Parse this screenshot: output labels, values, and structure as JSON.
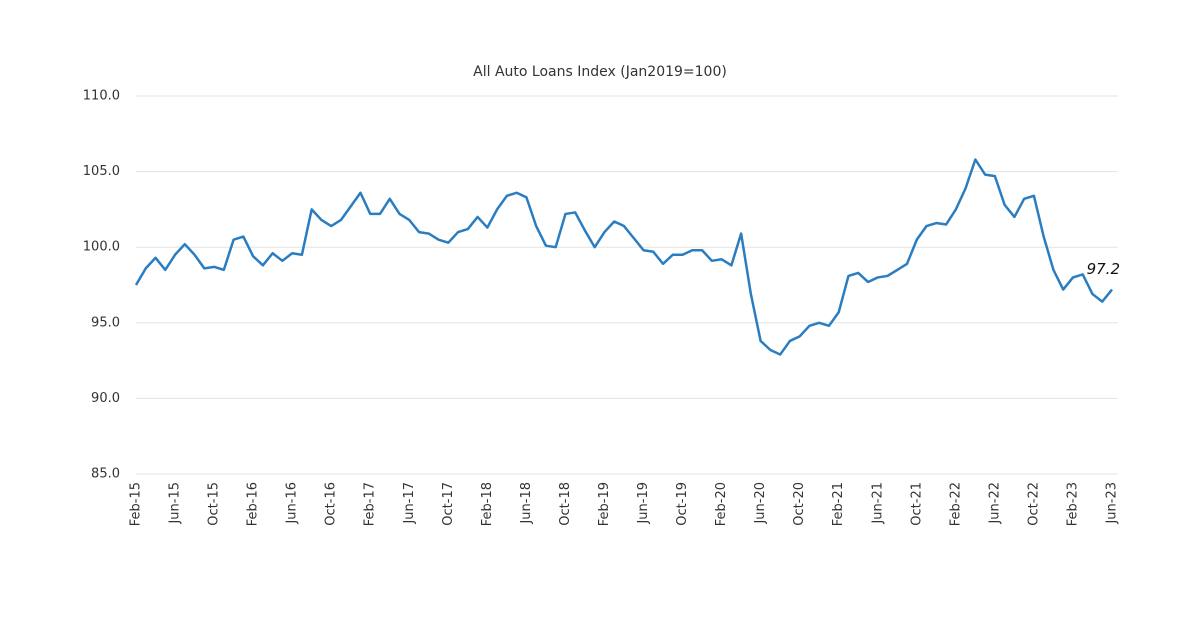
{
  "chart_data": {
    "type": "line",
    "title": "All Auto Loans Index (Jan2019=100)",
    "categories": [
      "Feb-15",
      null,
      null,
      null,
      "Jun-15",
      null,
      null,
      null,
      "Oct-15",
      null,
      null,
      null,
      "Feb-16",
      null,
      null,
      null,
      "Jun-16",
      null,
      null,
      null,
      "Oct-16",
      null,
      null,
      null,
      "Feb-17",
      null,
      null,
      null,
      "Jun-17",
      null,
      null,
      null,
      "Oct-17",
      null,
      null,
      null,
      "Feb-18",
      null,
      null,
      null,
      "Jun-18",
      null,
      null,
      null,
      "Oct-18",
      null,
      null,
      null,
      "Feb-19",
      null,
      null,
      null,
      "Jun-19",
      null,
      null,
      null,
      "Oct-19",
      null,
      null,
      null,
      "Feb-20",
      null,
      null,
      null,
      "Jun-20",
      null,
      null,
      null,
      "Oct-20",
      null,
      null,
      null,
      "Feb-21",
      null,
      null,
      null,
      "Jun-21",
      null,
      null,
      null,
      "Oct-21",
      null,
      null,
      null,
      "Feb-22",
      null,
      null,
      null,
      "Jun-22",
      null,
      null,
      null,
      "Oct-22",
      null,
      null,
      null,
      "Feb-23",
      null,
      null,
      null,
      "Jun-23"
    ],
    "values": [
      97.5,
      98.6,
      99.3,
      98.5,
      99.5,
      100.2,
      99.5,
      98.6,
      98.7,
      98.5,
      100.5,
      100.7,
      99.4,
      98.8,
      99.6,
      99.1,
      99.6,
      99.5,
      102.5,
      101.8,
      101.4,
      101.8,
      102.7,
      103.6,
      102.2,
      102.2,
      103.2,
      102.2,
      101.8,
      101.0,
      100.9,
      100.5,
      100.3,
      101.0,
      101.2,
      102.0,
      101.3,
      102.5,
      103.4,
      103.6,
      103.3,
      101.4,
      100.1,
      100.0,
      102.2,
      102.3,
      101.1,
      100.0,
      101.0,
      101.7,
      101.4,
      100.6,
      99.8,
      99.7,
      98.9,
      99.5,
      99.5,
      99.8,
      99.8,
      99.1,
      99.2,
      98.8,
      100.9,
      96.9,
      93.8,
      93.2,
      92.9,
      93.8,
      94.1,
      94.8,
      95.0,
      94.8,
      95.7,
      98.1,
      98.3,
      97.7,
      98.0,
      98.1,
      98.5,
      98.9,
      100.5,
      101.4,
      101.6,
      101.5,
      102.5,
      103.9,
      105.8,
      104.8,
      104.7,
      102.8,
      102.0,
      103.2,
      103.4,
      100.7,
      98.5,
      97.2,
      98.0,
      98.2,
      96.9,
      96.4,
      97.2
    ],
    "color": "#2a7dc0",
    "data_label": "last",
    "ylim": [
      85,
      110
    ],
    "yticks": [
      {
        "value": 85,
        "label": "85.0"
      },
      {
        "value": 90,
        "label": "90.0"
      },
      {
        "value": 95,
        "label": "95.0"
      },
      {
        "value": 100,
        "label": "100.0"
      },
      {
        "value": 105,
        "label": "105.0"
      },
      {
        "value": 110,
        "label": "110.0"
      }
    ],
    "grid": true
  }
}
